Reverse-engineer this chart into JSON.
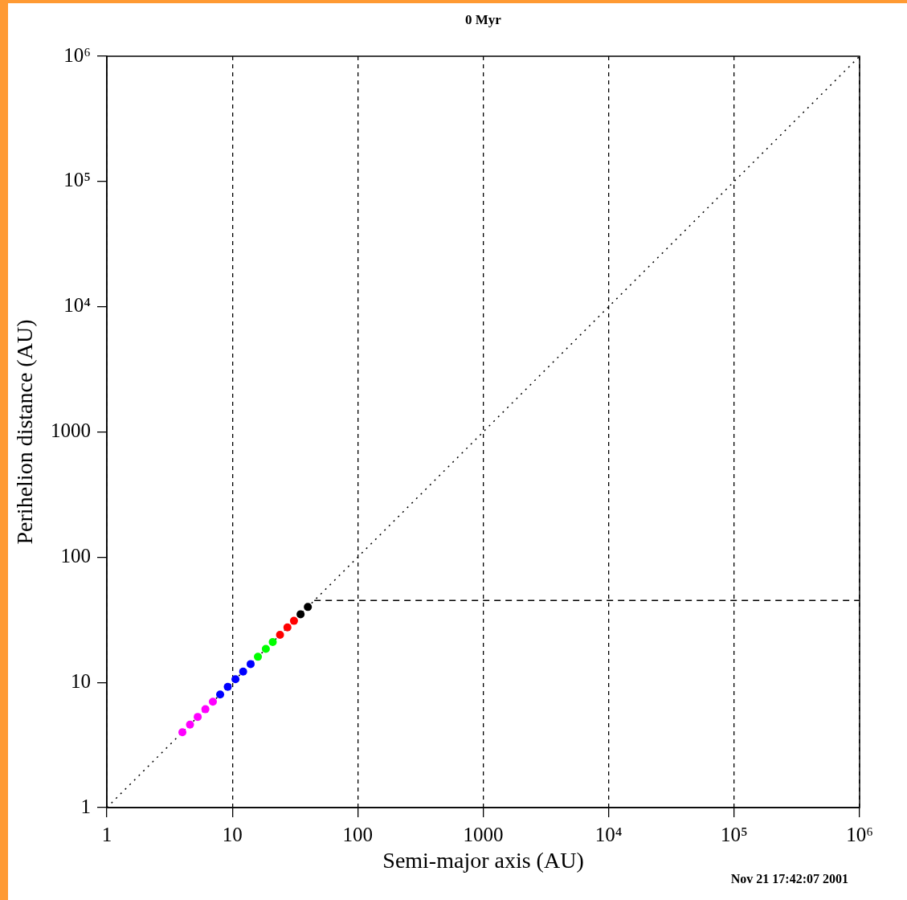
{
  "chart_data": {
    "type": "scatter",
    "title": "0 Myr",
    "xlabel": "Semi-major axis (AU)",
    "ylabel": "Perihelion distance (AU)",
    "annotations": [
      "Nov 21 17:42:07 2001"
    ],
    "log": "xy",
    "grid": "x",
    "legend": false,
    "marker": "circle",
    "xlim": [
      1,
      1000000
    ],
    "ylim": [
      1,
      1000000
    ],
    "xticks": [
      1,
      10,
      100,
      1000,
      {
        "value": 10000,
        "label": "10⁴"
      },
      {
        "value": 100000,
        "label": "10⁵"
      },
      {
        "value": 1000000,
        "label": "10⁶"
      }
    ],
    "yticks": [
      1,
      10,
      100,
      1000,
      {
        "value": 10000,
        "label": "10⁴"
      },
      {
        "value": 100000,
        "label": "10⁵"
      },
      {
        "value": 1000000,
        "label": "10⁶"
      }
    ],
    "series": [
      {
        "type": "line",
        "color": "#000000",
        "line_style": "dotted",
        "marker": "none",
        "x": [
          1,
          1000000
        ],
        "values": [
          1,
          1000000
        ]
      },
      {
        "type": "line",
        "color": "#000000",
        "line_style": "dashed",
        "marker": "none",
        "x": [
          45,
          1000000
        ],
        "values": [
          45,
          45
        ]
      },
      {
        "color": "#ff00ff",
        "x": [
          4,
          4.6,
          5.3,
          6.1,
          7
        ],
        "values": [
          4,
          4.6,
          5.3,
          6.1,
          7
        ]
      },
      {
        "color": "#0000ff",
        "x": [
          8,
          9.2,
          10.6,
          12.2,
          14
        ],
        "values": [
          8,
          9.2,
          10.6,
          12.2,
          14
        ]
      },
      {
        "color": "#00ff00",
        "x": [
          16,
          18.5,
          21
        ],
        "values": [
          16,
          18.5,
          21
        ]
      },
      {
        "color": "#ff0000",
        "x": [
          24,
          27.5,
          31
        ],
        "values": [
          24,
          27.5,
          31
        ]
      },
      {
        "color": "#000000",
        "x": [
          35,
          40
        ],
        "values": [
          35,
          40
        ]
      }
    ]
  }
}
